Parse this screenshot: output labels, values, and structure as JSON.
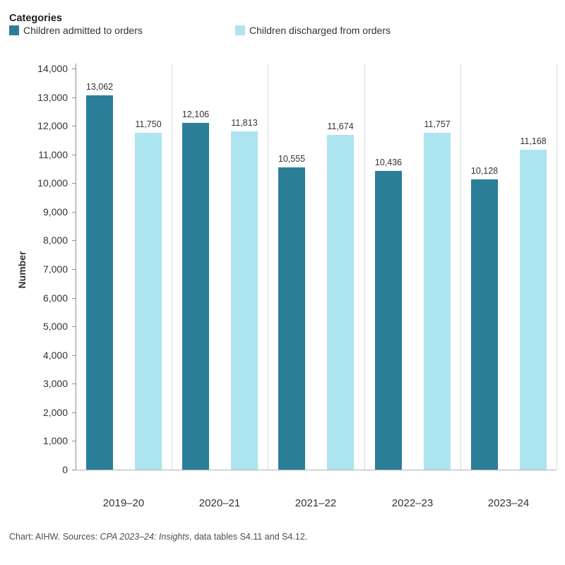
{
  "header": {
    "title": "Categories",
    "legend": [
      {
        "label": "Children admitted to orders",
        "color": "#2b7e98"
      },
      {
        "label": "Children discharged from orders",
        "color": "#ace4ef"
      }
    ]
  },
  "chart_data": {
    "type": "bar",
    "categories": [
      "2019–20",
      "2020–21",
      "2021–22",
      "2022–23",
      "2023–24"
    ],
    "series": [
      {
        "name": "Children admitted to orders",
        "color": "#2b7e98",
        "values": [
          13062,
          12106,
          10555,
          10436,
          10128
        ],
        "labels": [
          "13,062",
          "12,106",
          "10,555",
          "10,436",
          "10,128"
        ]
      },
      {
        "name": "Children discharged from orders",
        "color": "#ace4ef",
        "values": [
          11750,
          11813,
          11674,
          11757,
          11168
        ],
        "labels": [
          "11,750",
          "11,813",
          "11,674",
          "11,757",
          "11,168"
        ]
      }
    ],
    "title": "",
    "xlabel": "",
    "ylabel": "Number",
    "ylim": [
      0,
      14000
    ],
    "ytick_step": 1000,
    "ytick_labels": [
      "0",
      "1,000",
      "2,000",
      "3,000",
      "4,000",
      "5,000",
      "6,000",
      "7,000",
      "8,000",
      "9,000",
      "10,000",
      "11,000",
      "12,000",
      "13,000",
      "14,000"
    ],
    "grid": "vertical-pane-dividers-only",
    "legend_position": "top-left"
  },
  "footer": {
    "prefix": "Chart: AIHW. Sources: ",
    "italic": "CPA 2023–24: Insights",
    "suffix": ", data tables S4.11 and S4.12."
  }
}
